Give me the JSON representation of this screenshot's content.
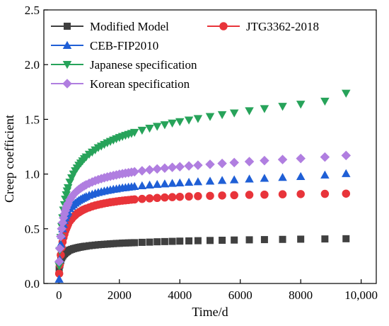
{
  "chart_data": {
    "type": "scatter",
    "title": "",
    "xlabel": "Time/d",
    "ylabel": "Creep coefficient",
    "xlim": [
      -500,
      10500
    ],
    "ylim": [
      0,
      2.5
    ],
    "x_ticks": [
      0,
      2000,
      4000,
      6000,
      8000,
      10000
    ],
    "x_tick_labels": [
      "0",
      "2000",
      "4000",
      "6000",
      "8000",
      "10,000"
    ],
    "y_ticks": [
      0,
      0.5,
      1.0,
      1.5,
      2.0,
      2.5
    ],
    "y_tick_labels": [
      "0.0",
      "0.5",
      "1.0",
      "1.5",
      "2.0",
      "2.5"
    ],
    "grid": false,
    "legend_position": "top-left",
    "x": [
      7,
      28,
      60,
      90,
      120,
      150,
      180,
      210,
      240,
      270,
      300,
      360,
      420,
      480,
      540,
      600,
      660,
      720,
      780,
      840,
      900,
      1000,
      1100,
      1200,
      1300,
      1400,
      1500,
      1600,
      1700,
      1800,
      1900,
      2000,
      2100,
      2200,
      2300,
      2400,
      2500,
      2750,
      3000,
      3250,
      3500,
      3750,
      4000,
      4300,
      4600,
      5000,
      5400,
      5800,
      6300,
      6800,
      7400,
      8000,
      8800,
      9500
    ],
    "series": [
      {
        "name": "Modified Model",
        "color": "#404040",
        "marker": "square",
        "values": [
          0.13,
          0.17,
          0.21,
          0.235,
          0.25,
          0.263,
          0.272,
          0.28,
          0.287,
          0.293,
          0.298,
          0.306,
          0.312,
          0.318,
          0.322,
          0.326,
          0.33,
          0.333,
          0.336,
          0.339,
          0.341,
          0.345,
          0.348,
          0.351,
          0.354,
          0.356,
          0.358,
          0.36,
          0.362,
          0.364,
          0.366,
          0.367,
          0.369,
          0.37,
          0.371,
          0.372,
          0.373,
          0.376,
          0.378,
          0.381,
          0.383,
          0.385,
          0.387,
          0.389,
          0.391,
          0.393,
          0.395,
          0.397,
          0.399,
          0.401,
          0.403,
          0.405,
          0.407,
          0.409
        ]
      },
      {
        "name": "JTG3362-2018",
        "color": "#e8343a",
        "marker": "circle",
        "values": [
          0.09,
          0.17,
          0.26,
          0.33,
          0.38,
          0.42,
          0.45,
          0.48,
          0.5,
          0.52,
          0.54,
          0.57,
          0.59,
          0.61,
          0.625,
          0.64,
          0.65,
          0.66,
          0.67,
          0.678,
          0.685,
          0.695,
          0.705,
          0.713,
          0.72,
          0.726,
          0.732,
          0.737,
          0.742,
          0.746,
          0.75,
          0.754,
          0.757,
          0.76,
          0.763,
          0.766,
          0.768,
          0.773,
          0.778,
          0.782,
          0.786,
          0.789,
          0.792,
          0.795,
          0.798,
          0.801,
          0.804,
          0.807,
          0.81,
          0.812,
          0.815,
          0.817,
          0.819,
          0.821
        ]
      },
      {
        "name": "CEB-FIP2010",
        "color": "#1f5fd6",
        "marker": "triangle-up",
        "values": [
          0.04,
          0.22,
          0.36,
          0.44,
          0.5,
          0.54,
          0.575,
          0.6,
          0.62,
          0.64,
          0.655,
          0.685,
          0.705,
          0.72,
          0.735,
          0.748,
          0.76,
          0.77,
          0.779,
          0.787,
          0.795,
          0.806,
          0.816,
          0.825,
          0.832,
          0.839,
          0.845,
          0.851,
          0.856,
          0.861,
          0.865,
          0.87,
          0.874,
          0.877,
          0.881,
          0.884,
          0.887,
          0.894,
          0.9,
          0.906,
          0.911,
          0.916,
          0.92,
          0.925,
          0.93,
          0.936,
          0.942,
          0.948,
          0.955,
          0.962,
          0.97,
          0.978,
          0.992,
          1.005
        ]
      },
      {
        "name": "Japanese specification",
        "color": "#27a35a",
        "marker": "triangle-down",
        "values": [
          0.16,
          0.3,
          0.42,
          0.52,
          0.6,
          0.67,
          0.72,
          0.77,
          0.81,
          0.845,
          0.875,
          0.925,
          0.965,
          1.0,
          1.03,
          1.055,
          1.08,
          1.1,
          1.12,
          1.14,
          1.155,
          1.18,
          1.2,
          1.22,
          1.24,
          1.255,
          1.27,
          1.285,
          1.298,
          1.31,
          1.322,
          1.333,
          1.343,
          1.353,
          1.362,
          1.371,
          1.38,
          1.4,
          1.418,
          1.435,
          1.45,
          1.465,
          1.478,
          1.493,
          1.507,
          1.525,
          1.542,
          1.558,
          1.578,
          1.597,
          1.618,
          1.638,
          1.665,
          1.738
        ]
      },
      {
        "name": "Korean specification",
        "color": "#b07ee0",
        "marker": "diamond",
        "values": [
          0.2,
          0.32,
          0.43,
          0.5,
          0.555,
          0.6,
          0.635,
          0.665,
          0.69,
          0.712,
          0.73,
          0.765,
          0.79,
          0.812,
          0.83,
          0.846,
          0.86,
          0.872,
          0.883,
          0.893,
          0.902,
          0.916,
          0.928,
          0.939,
          0.949,
          0.958,
          0.966,
          0.973,
          0.98,
          0.986,
          0.992,
          0.998,
          1.003,
          1.008,
          1.012,
          1.017,
          1.021,
          1.03,
          1.039,
          1.047,
          1.054,
          1.061,
          1.067,
          1.074,
          1.081,
          1.089,
          1.097,
          1.105,
          1.114,
          1.123,
          1.133,
          1.142,
          1.155,
          1.17
        ]
      }
    ]
  }
}
